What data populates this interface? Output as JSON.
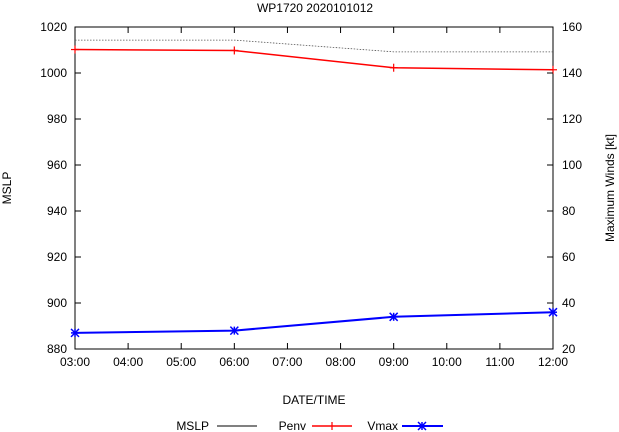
{
  "chart_data": {
    "type": "line",
    "title": "WP1720 2020101012",
    "xlabel": "DATE/TIME",
    "ylabel_left": "MSLP",
    "ylabel_right": "Maximum Winds [kt]",
    "x_ticks": [
      "03:00",
      "04:00",
      "05:00",
      "06:00",
      "07:00",
      "08:00",
      "09:00",
      "10:00",
      "11:00",
      "12:00"
    ],
    "x_range": [
      0,
      9
    ],
    "ylim_left": [
      880,
      1020
    ],
    "yticks_left": [
      880,
      900,
      920,
      940,
      960,
      980,
      1000,
      1020
    ],
    "ylim_right": [
      20,
      160
    ],
    "yticks_right": [
      20,
      40,
      60,
      80,
      100,
      120,
      140,
      160
    ],
    "legend_position": "bottom",
    "series": [
      {
        "name": "MSLP",
        "axis": "left",
        "color": "#000000",
        "style": "solid",
        "marker": "none",
        "x": [],
        "values": []
      },
      {
        "name": "Penv",
        "axis": "left",
        "color": "#ff0000",
        "style": "solid",
        "marker": "plus",
        "x": [
          0,
          3,
          6,
          9
        ],
        "values": [
          1010.2,
          1009.8,
          1002.3,
          1001.4
        ]
      },
      {
        "name": "Vmax",
        "axis": "right",
        "color": "#0000ff",
        "style": "solid",
        "marker": "star",
        "x": [
          0,
          3,
          6,
          9
        ],
        "values": [
          27,
          28,
          34,
          36
        ]
      }
    ],
    "extra_lines": [
      {
        "name": "dotted-reference",
        "axis": "left",
        "color": "#555555",
        "style": "dotted",
        "x": [
          0,
          3,
          6,
          9
        ],
        "values": [
          1014.3,
          1014.3,
          1009.2,
          1009.2
        ]
      }
    ]
  }
}
